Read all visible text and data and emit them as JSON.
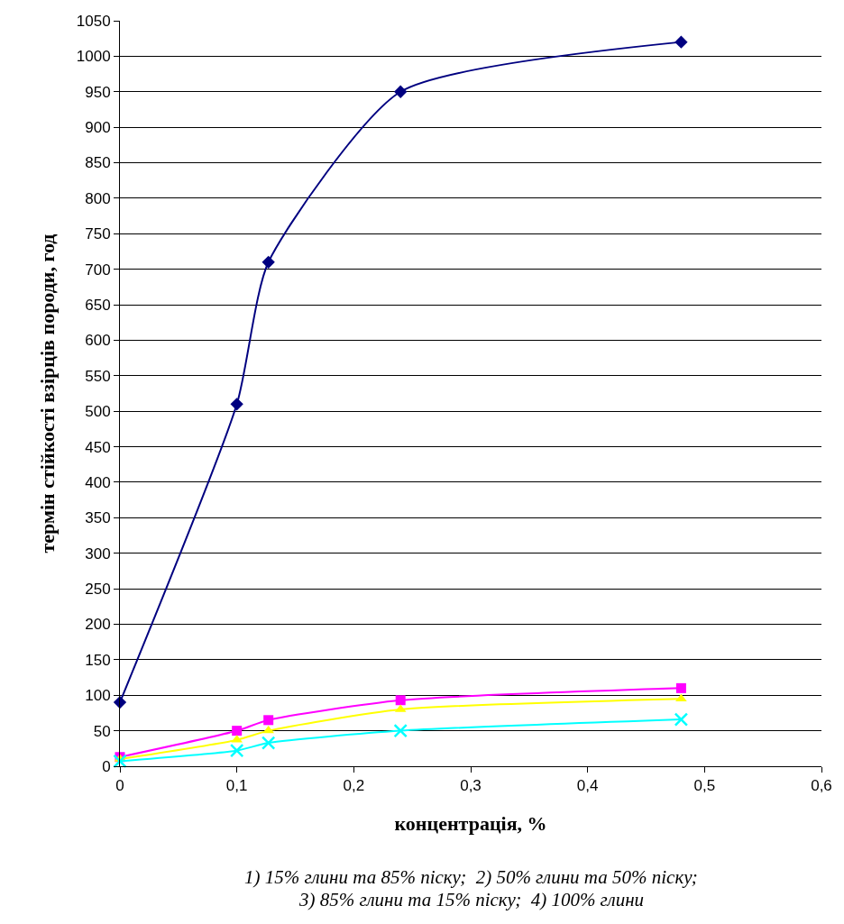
{
  "chart_data": {
    "type": "line",
    "xlabel": "концентрація, %",
    "ylabel": "термін стійкості взірців породи, год",
    "x": [
      0,
      0.1,
      0.127,
      0.24,
      0.48
    ],
    "series": [
      {
        "color": "#000080",
        "marker": "diamond",
        "values": [
          90,
          510,
          710,
          950,
          1020
        ]
      },
      {
        "color": "#ff00ff",
        "marker": "square",
        "values": [
          13,
          50,
          65,
          93,
          110
        ]
      },
      {
        "color": "#ffff00",
        "marker": "triangle",
        "values": [
          10,
          37,
          50,
          80,
          95
        ]
      },
      {
        "color": "#00ffff",
        "marker": "cross",
        "values": [
          7,
          22,
          33,
          50,
          66
        ]
      }
    ],
    "xlim": [
      0,
      0.6
    ],
    "xticks": [
      0,
      {
        "value": 0.1,
        "label": "0,1"
      },
      {
        "value": 0.2,
        "label": "0,2"
      },
      {
        "value": 0.3,
        "label": "0,3"
      },
      {
        "value": 0.4,
        "label": "0,4"
      },
      {
        "value": 0.5,
        "label": "0,5"
      },
      {
        "value": 0.6,
        "label": "0,6"
      }
    ],
    "ylim": [
      0,
      1050
    ],
    "yticks": [
      0,
      50,
      100,
      150,
      200,
      250,
      300,
      350,
      400,
      450,
      500,
      550,
      600,
      650,
      700,
      750,
      800,
      850,
      900,
      950,
      1000,
      1050
    ],
    "grid": "y",
    "annotations": [
      "1) 15% глини та 85% піску;  2) 50% глини та 50% піску;",
      "3) 85% глини та 15% піску;  4) 100% глини"
    ]
  }
}
